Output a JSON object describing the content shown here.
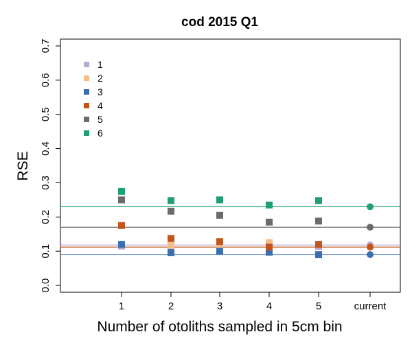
{
  "chart_data": {
    "type": "scatter",
    "title": "cod 2015 Q1",
    "xlabel": "Number of otoliths sampled in 5cm bin",
    "ylabel": "RSE",
    "categories": [
      "1",
      "2",
      "3",
      "4",
      "5",
      "current"
    ],
    "ylim": [
      -0.02,
      0.72
    ],
    "yticks": [
      0.0,
      0.1,
      0.2,
      0.3,
      0.4,
      0.5,
      0.6,
      0.7
    ],
    "ytick_labels": [
      "0.0",
      "0.1",
      "0.2",
      "0.3",
      "0.4",
      "0.5",
      "0.6",
      "0.7"
    ],
    "grid": false,
    "legend_position": "top-left",
    "series": [
      {
        "name": "1",
        "color": "#b9a7d4",
        "values": [
          0.115,
          0.112,
          0.11,
          0.112,
          0.114
        ],
        "current": 0.118
      },
      {
        "name": "2",
        "color": "#f3bd8c",
        "values": [
          0.12,
          0.117,
          0.118,
          0.125,
          0.12
        ],
        "current": 0.112
      },
      {
        "name": "3",
        "color": "#3a6fb0",
        "values": [
          0.12,
          0.096,
          0.1,
          0.097,
          0.09
        ],
        "current": 0.09
      },
      {
        "name": "4",
        "color": "#c0561d",
        "values": [
          0.175,
          0.137,
          0.128,
          0.112,
          0.12
        ],
        "current": 0.112
      },
      {
        "name": "5",
        "color": "#6b6b6b",
        "values": [
          0.25,
          0.217,
          0.205,
          0.185,
          0.188
        ],
        "current": 0.17
      },
      {
        "name": "6",
        "color": "#1f9e78",
        "values": [
          0.275,
          0.248,
          0.25,
          0.235,
          0.248
        ],
        "current": 0.23
      }
    ]
  }
}
